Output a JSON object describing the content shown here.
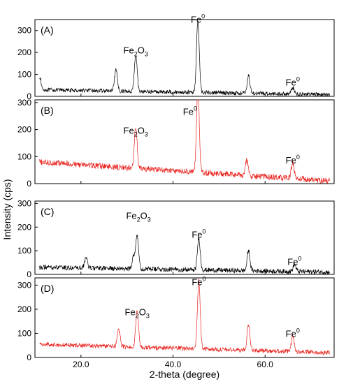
{
  "chart_data": {
    "type": "line",
    "xlabel": "2-theta (degree)",
    "ylabel": "Intensity (cps)",
    "xlim": [
      10,
      75
    ],
    "x_ticks": [
      20,
      40,
      60
    ],
    "x_tick_labels": [
      "20.0",
      "40.0",
      "60.0"
    ],
    "grid": false,
    "panels": [
      {
        "label": "(A)",
        "color": "#000000",
        "ylim": [
          0,
          350
        ],
        "y_ticks": [
          0,
          100,
          200,
          300
        ],
        "y_tick_labels": [
          "0",
          "100",
          "200",
          "300"
        ],
        "baseline_start": 30,
        "baseline_end": 8,
        "noise": 18,
        "peaks": [
          [
            11.0,
            60
          ],
          [
            27.6,
            95
          ],
          [
            31.9,
            165
          ],
          [
            45.4,
            330
          ],
          [
            56.4,
            80
          ],
          [
            66.0,
            30
          ]
        ],
        "annotations": [
          {
            "text": "Fe",
            "sub": "2",
            "text2": "O",
            "sub2": "3",
            "x": 31.9,
            "y": 195
          },
          {
            "text": "Fe",
            "sup": "0",
            "x": 45.4,
            "y": 335
          },
          {
            "text": "Fe",
            "sup": "0",
            "x": 66.0,
            "y": 50
          }
        ]
      },
      {
        "label": "(B)",
        "color": "#e8231e",
        "ylim": [
          0,
          310
        ],
        "y_ticks": [
          0,
          100,
          200,
          300
        ],
        "y_tick_labels": [
          "0",
          "100",
          "200",
          "300"
        ],
        "baseline_start": 80,
        "baseline_end": 10,
        "noise": 22,
        "peaks": [
          [
            31.9,
            155
          ],
          [
            45.4,
            315
          ],
          [
            56.0,
            55
          ],
          [
            66.0,
            60
          ]
        ],
        "annotations": [
          {
            "text": "Fe",
            "sub": "2",
            "text2": "O",
            "sub2": "3",
            "x": 31.9,
            "y": 185
          },
          {
            "text": "Fe",
            "sup": "0",
            "x": 43.7,
            "y": 255
          },
          {
            "text": "Fe",
            "sup": "0",
            "x": 66.0,
            "y": 75
          }
        ]
      },
      {
        "label": "(C)",
        "color": "#000000",
        "ylim": [
          0,
          310
        ],
        "y_ticks": [
          0,
          100,
          200,
          300
        ],
        "y_tick_labels": [
          "0",
          "100",
          "200",
          "300"
        ],
        "baseline_start": 30,
        "baseline_end": 10,
        "noise": 20,
        "peaks": [
          [
            21.1,
            45
          ],
          [
            31.4,
            55
          ],
          [
            32.2,
            145
          ],
          [
            45.6,
            135
          ],
          [
            56.4,
            85
          ],
          [
            66.4,
            30
          ]
        ],
        "annotations": [
          {
            "text": "Fe",
            "sub": "2",
            "text2": "O",
            "sub2": "3",
            "x": 32.5,
            "y": 235
          },
          {
            "text": "Fe",
            "sup": "0",
            "x": 45.6,
            "y": 155
          },
          {
            "text": "Fe",
            "sup": "0",
            "x": 66.4,
            "y": 40
          }
        ]
      },
      {
        "label": "(D)",
        "color": "#e8231e",
        "ylim": [
          0,
          330
        ],
        "y_ticks": [
          0,
          100,
          200,
          300
        ],
        "y_tick_labels": [
          "0",
          "100",
          "200",
          "300"
        ],
        "baseline_start": 55,
        "baseline_end": 20,
        "noise": 18,
        "peaks": [
          [
            28.2,
            70
          ],
          [
            32.2,
            150
          ],
          [
            45.6,
            290
          ],
          [
            56.4,
            110
          ],
          [
            66.0,
            65
          ]
        ],
        "annotations": [
          {
            "text": "Fe",
            "sub": "2",
            "text2": "O",
            "sub2": "3",
            "x": 32.2,
            "y": 175
          },
          {
            "text": "Fe",
            "sup": "0",
            "x": 45.6,
            "y": 300
          },
          {
            "text": "Fe",
            "sup": "0",
            "x": 66.0,
            "y": 85
          }
        ]
      }
    ]
  }
}
